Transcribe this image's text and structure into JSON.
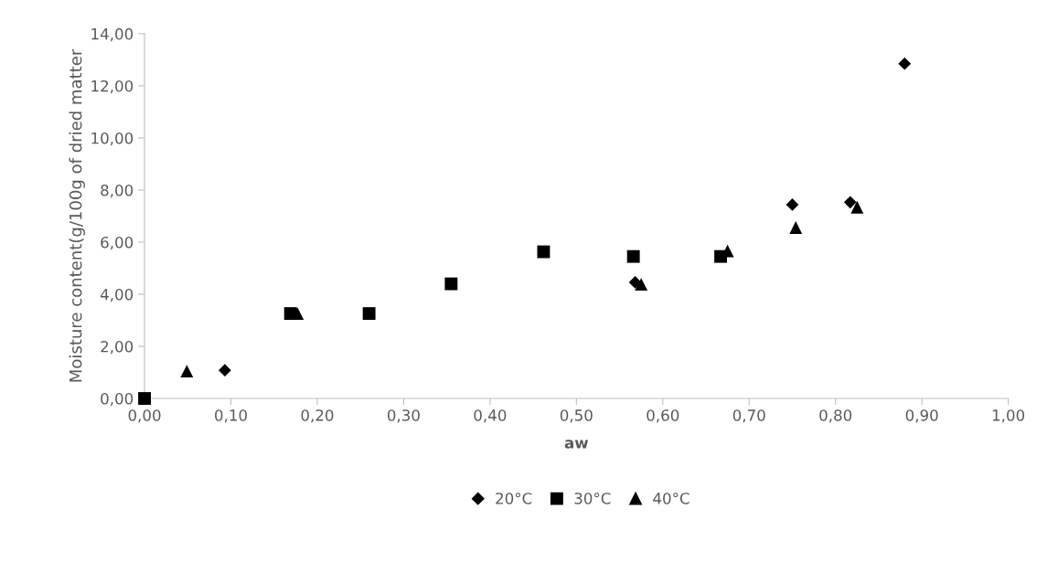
{
  "chart_data": {
    "type": "scatter",
    "xlabel": "aw",
    "ylabel": "Moisture content(g/100g of dried matter",
    "legend": "bottom",
    "grid": false,
    "xlim": [
      0,
      1
    ],
    "xticks": [
      {
        "value": 0,
        "label": "0,00"
      },
      {
        "value": 0.1,
        "label": "0,10"
      },
      {
        "value": 0.2,
        "label": "0,20"
      },
      {
        "value": 0.3,
        "label": "0,30"
      },
      {
        "value": 0.4,
        "label": "0,40"
      },
      {
        "value": 0.5,
        "label": "0,50"
      },
      {
        "value": 0.6,
        "label": "0,60"
      },
      {
        "value": 0.7,
        "label": "0,70"
      },
      {
        "value": 0.8,
        "label": "0,80"
      },
      {
        "value": 0.9,
        "label": "0,90"
      },
      {
        "value": 1,
        "label": "1,00"
      }
    ],
    "ylim": [
      0,
      14
    ],
    "yticks": [
      {
        "value": 0,
        "label": "0,00"
      },
      {
        "value": 2,
        "label": "2,00"
      },
      {
        "value": 4,
        "label": "4,00"
      },
      {
        "value": 6,
        "label": "6,00"
      },
      {
        "value": 8,
        "label": "8,00"
      },
      {
        "value": 10,
        "label": "10,00"
      },
      {
        "value": 12,
        "label": "12,00"
      },
      {
        "value": 14,
        "label": "14,00"
      }
    ],
    "series": [
      {
        "name": "20°C",
        "color": "#000000",
        "marker": "diamond",
        "x": [
          0.093,
          0.568,
          0.75,
          0.817,
          0.88
        ],
        "values": [
          1.08,
          4.46,
          7.44,
          7.53,
          12.85
        ]
      },
      {
        "name": "30°C",
        "color": "#000000",
        "marker": "square",
        "x": [
          0,
          0.169,
          0.26,
          0.355,
          0.462,
          0.566,
          0.667
        ],
        "values": [
          0,
          3.26,
          3.26,
          4.4,
          5.63,
          5.45,
          5.45
        ]
      },
      {
        "name": "40°C",
        "color": "#000000",
        "marker": "triangle",
        "x": [
          0.049,
          0.177,
          0.575,
          0.675,
          0.754,
          0.825
        ],
        "values": [
          1.05,
          3.26,
          4.38,
          5.66,
          6.56,
          7.34
        ]
      }
    ]
  }
}
